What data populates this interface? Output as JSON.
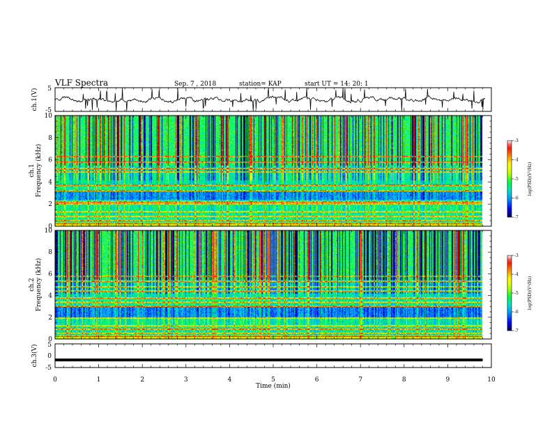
{
  "header": {
    "title": "VLF Spectra",
    "date": "Sep. 7 , 2018",
    "station": "station= KAP",
    "start_time": "start  UT =   14: 20: 1"
  },
  "colors": {
    "colormap": [
      "#00004a",
      "#0000ff",
      "#0090ff",
      "#00e0d0",
      "#00ff40",
      "#c8ff00",
      "#ffff00",
      "#ff8800",
      "#ff0000",
      "#ffffff"
    ],
    "waveform": "#000000"
  },
  "chart_data": [
    {
      "type": "line",
      "name": "ch1-waveform",
      "ylabel": "ch.1(V)",
      "ylim": [
        -5,
        5
      ],
      "yticks": [
        "5",
        "-5"
      ],
      "xlim": [
        0,
        10
      ],
      "note_values": "noisy waveform about 0 V, roughly -2 to +2 V with spikes"
    },
    {
      "type": "heatmap",
      "name": "ch1-spectrogram",
      "ylabel_line1": "ch.1",
      "ylabel_line2": "Frequency (kHz)",
      "ylim": [
        0,
        10
      ],
      "yticks": [
        "0",
        "2",
        "4",
        "6",
        "8",
        "10"
      ],
      "xlim": [
        0,
        9.8
      ],
      "colorbar_label": "log(PSD)(V²/Hz)",
      "colorbar_ticks": [
        "-3",
        "-4",
        "-5",
        "-6",
        "-7"
      ],
      "color_range": [
        -7,
        -3
      ],
      "horizontal_lines_khz": [
        0.25,
        0.5,
        0.9,
        1.3,
        2.0,
        2.2,
        3.2,
        3.7,
        4.9,
        5.2,
        5.8,
        6.3
      ],
      "low_bands_khz": [
        [
          2.4,
          3.2
        ]
      ]
    },
    {
      "type": "heatmap",
      "name": "ch2-spectrogram",
      "ylabel_line1": "ch.2",
      "ylabel_line2": "Frequency (kHz)",
      "ylim": [
        0,
        10
      ],
      "yticks": [
        "0",
        "2",
        "4",
        "6",
        "8",
        "10"
      ],
      "xlim": [
        0,
        9.8
      ],
      "colorbar_label": "log(PSD)(V²/Hz)",
      "colorbar_ticks": [
        "-3",
        "-4",
        "-5",
        "-6",
        "-7"
      ],
      "color_range": [
        -7,
        -3
      ],
      "horizontal_lines_khz": [
        0.25,
        0.5,
        0.9,
        1.2,
        1.9,
        3.0,
        3.4,
        3.8,
        4.4,
        4.8,
        5.3,
        5.8
      ],
      "low_bands_khz": [
        [
          1.9,
          3.0
        ]
      ]
    },
    {
      "type": "line",
      "name": "ch3-waveform",
      "ylabel": "ch.3(V)",
      "ylim": [
        -5,
        5
      ],
      "yticks": [
        "5",
        "0",
        "-5"
      ],
      "xlim": [
        0,
        10
      ],
      "x": [
        0,
        9.8
      ],
      "y": [
        -1.8,
        -1.8
      ]
    }
  ],
  "xaxis": {
    "label": "Time (min)",
    "ticks": [
      "0",
      "1",
      "2",
      "3",
      "4",
      "5",
      "6",
      "7",
      "8",
      "9",
      "10"
    ],
    "range": [
      0,
      10
    ]
  }
}
